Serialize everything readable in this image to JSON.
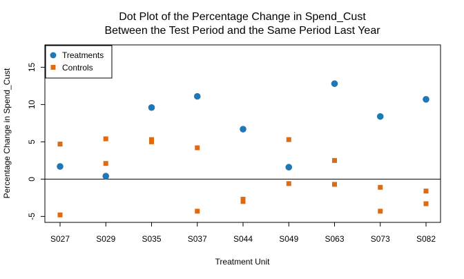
{
  "chart_data": {
    "type": "scatter",
    "title": "Dot Plot of the Percentage Change in Spend_Cust",
    "subtitle": "Between the Test Period and the Same Period Last Year",
    "xlabel": "Treatment Unit",
    "ylabel": "Percentage Change in Spend_Cust",
    "categories": [
      "S027",
      "S029",
      "S035",
      "S037",
      "S044",
      "S049",
      "S063",
      "S073",
      "S082"
    ],
    "ylim": [
      -5.8,
      18
    ],
    "yticks": [
      -5,
      0,
      5,
      10,
      15
    ],
    "reference_line_y": 0,
    "grid": false,
    "legend_position": "top-left",
    "colors": {
      "treatments": "#1f77b4",
      "controls": "#e06a10",
      "axis": "#000000"
    },
    "series": [
      {
        "name": "Treatments",
        "marker": "circle",
        "points": [
          {
            "x": "S027",
            "y": 1.7
          },
          {
            "x": "S029",
            "y": 0.4
          },
          {
            "x": "S035",
            "y": 9.6
          },
          {
            "x": "S037",
            "y": 11.1
          },
          {
            "x": "S044",
            "y": 6.7
          },
          {
            "x": "S049",
            "y": 1.6
          },
          {
            "x": "S063",
            "y": 12.8
          },
          {
            "x": "S073",
            "y": 8.4
          },
          {
            "x": "S082",
            "y": 10.7
          }
        ]
      },
      {
        "name": "Controls",
        "marker": "square",
        "points": [
          {
            "x": "S027",
            "y": 4.7
          },
          {
            "x": "S027",
            "y": -4.8
          },
          {
            "x": "S029",
            "y": 5.4
          },
          {
            "x": "S029",
            "y": 2.1
          },
          {
            "x": "S035",
            "y": 5.3
          },
          {
            "x": "S035",
            "y": 5.0
          },
          {
            "x": "S037",
            "y": 4.2
          },
          {
            "x": "S037",
            "y": -4.3
          },
          {
            "x": "S044",
            "y": -2.7
          },
          {
            "x": "S044",
            "y": -3.0
          },
          {
            "x": "S049",
            "y": 5.3
          },
          {
            "x": "S049",
            "y": -0.6
          },
          {
            "x": "S063",
            "y": 2.5
          },
          {
            "x": "S063",
            "y": -0.7
          },
          {
            "x": "S073",
            "y": -1.1
          },
          {
            "x": "S073",
            "y": -4.3
          },
          {
            "x": "S082",
            "y": -1.6
          },
          {
            "x": "S082",
            "y": -3.3
          }
        ]
      }
    ]
  }
}
